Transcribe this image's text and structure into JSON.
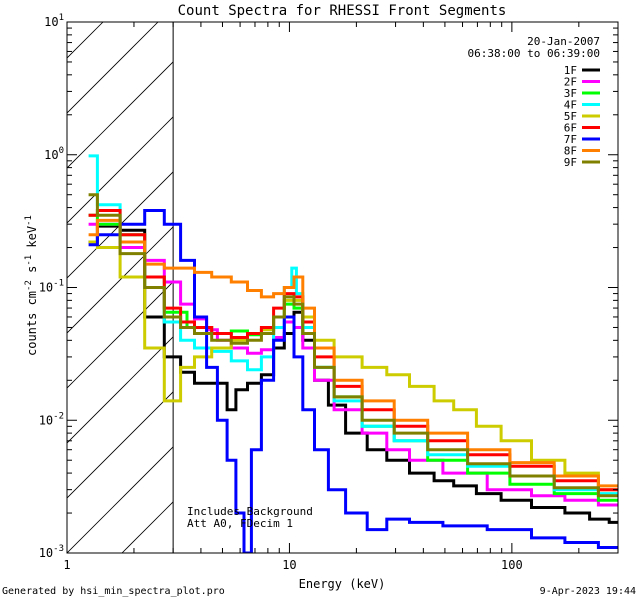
{
  "chart_data": {
    "type": "line",
    "title": "Count Spectra for RHESSI Front Segments",
    "xlabel": "Energy (keV)",
    "ylabel": "counts cm",
    "ylabel_sup1": "-2",
    "ylabel_mid": " s",
    "ylabel_sup2": "-1",
    "ylabel_end": " keV",
    "ylabel_sup3": "-1",
    "xscale": "log",
    "yscale": "log",
    "xlim": [
      1,
      300
    ],
    "ylim": [
      0.001,
      10
    ],
    "x_major_ticks": [
      {
        "value": 1,
        "label": "1"
      },
      {
        "value": 10,
        "label": "10"
      },
      {
        "value": 100,
        "label": "100"
      }
    ],
    "y_major_ticks": [
      {
        "value": 0.001,
        "base": "10",
        "exp": "-3"
      },
      {
        "value": 0.01,
        "base": "10",
        "exp": "-2"
      },
      {
        "value": 0.1,
        "base": "10",
        "exp": "-1"
      },
      {
        "value": 1,
        "base": "10",
        "exp": "0"
      },
      {
        "value": 10,
        "base": "10",
        "exp": "1"
      }
    ],
    "hatched_region": {
      "x_from": 1,
      "x_to": 3
    },
    "date": "20-Jan-2007",
    "time_range": "06:38:00 to 06:39:00",
    "annotation_lines": [
      "Includes Background",
      "Att A0, FDecim 1"
    ],
    "series": [
      {
        "name": "1F",
        "color": "#000000",
        "points": [
          [
            1.25,
            0.22
          ],
          [
            1.5,
            0.29
          ],
          [
            2.0,
            0.27
          ],
          [
            2.5,
            0.06
          ],
          [
            3.0,
            0.03
          ],
          [
            3.5,
            0.023
          ],
          [
            4.0,
            0.019
          ],
          [
            5.0,
            0.019
          ],
          [
            5.5,
            0.012
          ],
          [
            6.0,
            0.017
          ],
          [
            7.0,
            0.019
          ],
          [
            8.0,
            0.022
          ],
          [
            9.0,
            0.035
          ],
          [
            10.0,
            0.045
          ],
          [
            11.0,
            0.065
          ],
          [
            12.0,
            0.04
          ],
          [
            14.0,
            0.02
          ],
          [
            16.0,
            0.013
          ],
          [
            20.0,
            0.008
          ],
          [
            25.0,
            0.006
          ],
          [
            30.0,
            0.005
          ],
          [
            40.0,
            0.004
          ],
          [
            50.0,
            0.0035
          ],
          [
            60.0,
            0.0032
          ],
          [
            80.0,
            0.0028
          ],
          [
            100.0,
            0.0025
          ],
          [
            150.0,
            0.0022
          ],
          [
            200.0,
            0.002
          ],
          [
            250.0,
            0.0018
          ],
          [
            300.0,
            0.0017
          ]
        ]
      },
      {
        "name": "2F",
        "color": "#ff00ff",
        "points": [
          [
            1.25,
            0.3
          ],
          [
            1.5,
            0.3
          ],
          [
            2.0,
            0.2
          ],
          [
            2.5,
            0.16
          ],
          [
            3.0,
            0.11
          ],
          [
            3.5,
            0.075
          ],
          [
            4.0,
            0.058
          ],
          [
            4.5,
            0.048
          ],
          [
            5.0,
            0.04
          ],
          [
            6.0,
            0.035
          ],
          [
            7.0,
            0.032
          ],
          [
            8.0,
            0.034
          ],
          [
            9.0,
            0.042
          ],
          [
            10.0,
            0.055
          ],
          [
            11.0,
            0.05
          ],
          [
            12.0,
            0.035
          ],
          [
            14.0,
            0.02
          ],
          [
            18.0,
            0.012
          ],
          [
            25.0,
            0.008
          ],
          [
            30.0,
            0.006
          ],
          [
            40.0,
            0.005
          ],
          [
            60.0,
            0.004
          ],
          [
            100.0,
            0.003
          ],
          [
            150.0,
            0.0027
          ],
          [
            200.0,
            0.0025
          ],
          [
            300.0,
            0.0023
          ]
        ]
      },
      {
        "name": "3F",
        "color": "#00ff00",
        "points": [
          [
            1.25,
            0.35
          ],
          [
            1.5,
            0.3
          ],
          [
            2.0,
            0.25
          ],
          [
            2.5,
            0.12
          ],
          [
            3.0,
            0.065
          ],
          [
            4.0,
            0.05
          ],
          [
            5.0,
            0.045
          ],
          [
            6.0,
            0.047
          ],
          [
            7.0,
            0.044
          ],
          [
            8.0,
            0.045
          ],
          [
            9.0,
            0.06
          ],
          [
            10.0,
            0.075
          ],
          [
            11.0,
            0.07
          ],
          [
            12.0,
            0.045
          ],
          [
            14.0,
            0.025
          ],
          [
            18.0,
            0.015
          ],
          [
            25.0,
            0.009
          ],
          [
            35.0,
            0.007
          ],
          [
            50.0,
            0.005
          ],
          [
            80.0,
            0.004
          ],
          [
            120.0,
            0.0033
          ],
          [
            200.0,
            0.0028
          ],
          [
            300.0,
            0.0025
          ]
        ]
      },
      {
        "name": "4F",
        "color": "#00ffff",
        "points": [
          [
            1.25,
            0.98
          ],
          [
            1.5,
            0.42
          ],
          [
            2.0,
            0.22
          ],
          [
            2.5,
            0.1
          ],
          [
            3.0,
            0.055
          ],
          [
            3.5,
            0.04
          ],
          [
            4.0,
            0.035
          ],
          [
            5.0,
            0.033
          ],
          [
            6.0,
            0.028
          ],
          [
            7.0,
            0.024
          ],
          [
            8.0,
            0.03
          ],
          [
            9.0,
            0.05
          ],
          [
            10.0,
            0.1
          ],
          [
            10.5,
            0.14
          ],
          [
            11.0,
            0.09
          ],
          [
            12.0,
            0.05
          ],
          [
            14.0,
            0.025
          ],
          [
            18.0,
            0.014
          ],
          [
            25.0,
            0.009
          ],
          [
            35.0,
            0.007
          ],
          [
            50.0,
            0.0055
          ],
          [
            80.0,
            0.0045
          ],
          [
            120.0,
            0.0038
          ],
          [
            200.0,
            0.003
          ],
          [
            300.0,
            0.0028
          ]
        ]
      },
      {
        "name": "5F",
        "color": "#cccc00",
        "points": [
          [
            1.25,
            0.22
          ],
          [
            1.5,
            0.2
          ],
          [
            2.0,
            0.12
          ],
          [
            2.5,
            0.035
          ],
          [
            3.0,
            0.014
          ],
          [
            3.5,
            0.025
          ],
          [
            4.0,
            0.03
          ],
          [
            5.0,
            0.035
          ],
          [
            6.0,
            0.04
          ],
          [
            7.0,
            0.045
          ],
          [
            8.0,
            0.048
          ],
          [
            9.0,
            0.06
          ],
          [
            10.0,
            0.08
          ],
          [
            11.0,
            0.08
          ],
          [
            12.0,
            0.06
          ],
          [
            14.0,
            0.04
          ],
          [
            18.0,
            0.03
          ],
          [
            25.0,
            0.025
          ],
          [
            30.0,
            0.022
          ],
          [
            40.0,
            0.018
          ],
          [
            50.0,
            0.014
          ],
          [
            60.0,
            0.012
          ],
          [
            80.0,
            0.009
          ],
          [
            100.0,
            0.007
          ],
          [
            150.0,
            0.005
          ],
          [
            200.0,
            0.004
          ],
          [
            300.0,
            0.003
          ]
        ]
      },
      {
        "name": "6F",
        "color": "#ff0000",
        "points": [
          [
            1.25,
            0.35
          ],
          [
            1.5,
            0.38
          ],
          [
            2.0,
            0.25
          ],
          [
            2.5,
            0.12
          ],
          [
            3.0,
            0.07
          ],
          [
            3.5,
            0.055
          ],
          [
            4.0,
            0.05
          ],
          [
            5.0,
            0.045
          ],
          [
            6.0,
            0.042
          ],
          [
            7.0,
            0.045
          ],
          [
            8.0,
            0.05
          ],
          [
            9.0,
            0.07
          ],
          [
            10.0,
            0.09
          ],
          [
            11.0,
            0.085
          ],
          [
            12.0,
            0.055
          ],
          [
            14.0,
            0.03
          ],
          [
            18.0,
            0.018
          ],
          [
            25.0,
            0.012
          ],
          [
            35.0,
            0.009
          ],
          [
            50.0,
            0.007
          ],
          [
            80.0,
            0.0055
          ],
          [
            120.0,
            0.0045
          ],
          [
            200.0,
            0.0035
          ],
          [
            300.0,
            0.003
          ]
        ]
      },
      {
        "name": "7F",
        "color": "#0000ff",
        "points": [
          [
            1.25,
            0.21
          ],
          [
            1.5,
            0.25
          ],
          [
            2.0,
            0.3
          ],
          [
            2.5,
            0.38
          ],
          [
            3.0,
            0.3
          ],
          [
            3.5,
            0.16
          ],
          [
            4.0,
            0.06
          ],
          [
            4.5,
            0.025
          ],
          [
            5.0,
            0.01
          ],
          [
            5.5,
            0.005
          ],
          [
            6.0,
            0.002
          ],
          [
            6.5,
            0.001
          ],
          [
            7.0,
            0.006
          ],
          [
            8.0,
            0.02
          ],
          [
            9.0,
            0.04
          ],
          [
            10.0,
            0.06
          ],
          [
            11.0,
            0.03
          ],
          [
            12.0,
            0.012
          ],
          [
            14.0,
            0.006
          ],
          [
            16.0,
            0.003
          ],
          [
            20.0,
            0.002
          ],
          [
            25.0,
            0.0015
          ],
          [
            30.0,
            0.0018
          ],
          [
            40.0,
            0.0017
          ],
          [
            60.0,
            0.0016
          ],
          [
            100.0,
            0.0015
          ],
          [
            150.0,
            0.0013
          ],
          [
            200.0,
            0.0012
          ],
          [
            300.0,
            0.0011
          ]
        ]
      },
      {
        "name": "8F",
        "color": "#ff8000",
        "points": [
          [
            1.25,
            0.25
          ],
          [
            1.5,
            0.32
          ],
          [
            2.0,
            0.22
          ],
          [
            2.5,
            0.15
          ],
          [
            3.0,
            0.14
          ],
          [
            3.5,
            0.14
          ],
          [
            4.0,
            0.13
          ],
          [
            5.0,
            0.12
          ],
          [
            6.0,
            0.11
          ],
          [
            7.0,
            0.095
          ],
          [
            8.0,
            0.085
          ],
          [
            9.0,
            0.09
          ],
          [
            10.0,
            0.1
          ],
          [
            11.0,
            0.12
          ],
          [
            12.0,
            0.07
          ],
          [
            14.0,
            0.035
          ],
          [
            18.0,
            0.02
          ],
          [
            25.0,
            0.014
          ],
          [
            35.0,
            0.01
          ],
          [
            50.0,
            0.008
          ],
          [
            80.0,
            0.006
          ],
          [
            120.0,
            0.0048
          ],
          [
            200.0,
            0.0038
          ],
          [
            300.0,
            0.0032
          ]
        ]
      },
      {
        "name": "9F",
        "color": "#808000",
        "points": [
          [
            1.25,
            0.5
          ],
          [
            1.5,
            0.35
          ],
          [
            2.0,
            0.18
          ],
          [
            2.5,
            0.1
          ],
          [
            3.0,
            0.06
          ],
          [
            3.5,
            0.05
          ],
          [
            4.0,
            0.045
          ],
          [
            5.0,
            0.04
          ],
          [
            6.0,
            0.038
          ],
          [
            7.0,
            0.04
          ],
          [
            8.0,
            0.045
          ],
          [
            9.0,
            0.06
          ],
          [
            10.0,
            0.085
          ],
          [
            11.0,
            0.075
          ],
          [
            12.0,
            0.045
          ],
          [
            14.0,
            0.025
          ],
          [
            18.0,
            0.015
          ],
          [
            25.0,
            0.01
          ],
          [
            35.0,
            0.008
          ],
          [
            50.0,
            0.006
          ],
          [
            80.0,
            0.0047
          ],
          [
            120.0,
            0.0038
          ],
          [
            200.0,
            0.0031
          ],
          [
            300.0,
            0.0027
          ]
        ]
      }
    ]
  },
  "footer": {
    "generated_by": "Generated by hsi_min_spectra_plot.pro",
    "timestamp": "9-Apr-2023 19:44"
  }
}
